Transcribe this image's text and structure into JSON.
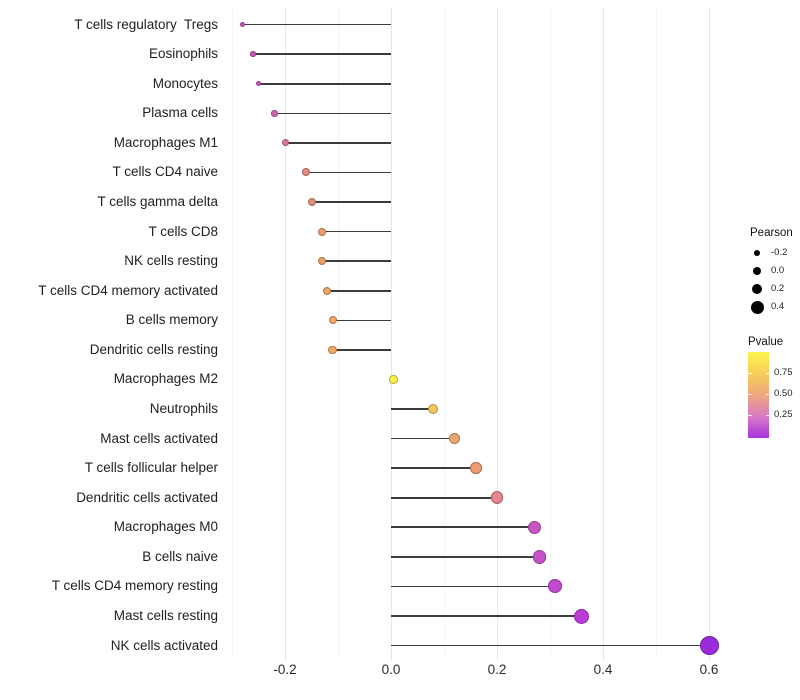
{
  "chart_data": {
    "type": "lollipop",
    "title": "",
    "xlabel": "",
    "ylabel": "",
    "x_tick_labels": [
      "-0.2",
      "0.0",
      "0.2",
      "0.4",
      "0.6"
    ],
    "x_tick_values": [
      -0.2,
      0.0,
      0.2,
      0.4,
      0.6
    ],
    "x_minor_tick_values": [
      -0.3,
      -0.1,
      0.1,
      0.3,
      0.5
    ],
    "x_range": [
      -0.32,
      0.64
    ],
    "grid": "vertical-only",
    "rows": [
      {
        "label": "T cells regulatory  Tregs",
        "pearson": -0.28,
        "pvalue": 0.3,
        "color": "#C157BB",
        "size": 5
      },
      {
        "label": "Eosinophils",
        "pearson": -0.26,
        "pvalue": 0.3,
        "color": "#C45AB8",
        "size": 5.5
      },
      {
        "label": "Monocytes",
        "pearson": -0.25,
        "pvalue": 0.31,
        "color": "#C55CB6",
        "size": 5.5
      },
      {
        "label": "Plasma cells",
        "pearson": -0.22,
        "pvalue": 0.33,
        "color": "#CC64AE",
        "size": 6.5
      },
      {
        "label": "Macrophages M1",
        "pearson": -0.2,
        "pvalue": 0.38,
        "color": "#DA7697",
        "size": 7
      },
      {
        "label": "T cells CD4 naive",
        "pearson": -0.16,
        "pvalue": 0.46,
        "color": "#E48A80",
        "size": 8
      },
      {
        "label": "T cells gamma delta",
        "pearson": -0.15,
        "pvalue": 0.47,
        "color": "#E38D7C",
        "size": 8
      },
      {
        "label": "T cells CD8",
        "pearson": -0.13,
        "pvalue": 0.55,
        "color": "#EC9F6B",
        "size": 8
      },
      {
        "label": "NK cells resting",
        "pearson": -0.13,
        "pvalue": 0.55,
        "color": "#EDA167",
        "size": 8
      },
      {
        "label": "T cells CD4 memory activated",
        "pearson": -0.12,
        "pvalue": 0.56,
        "color": "#EEA365",
        "size": 8
      },
      {
        "label": "B cells memory",
        "pearson": -0.11,
        "pvalue": 0.57,
        "color": "#EFA663",
        "size": 8
      },
      {
        "label": "Dendritic cells resting",
        "pearson": -0.11,
        "pvalue": 0.57,
        "color": "#F0A765",
        "size": 8.5
      },
      {
        "label": "Macrophages M2",
        "pearson": 0.005,
        "pvalue": 0.93,
        "color": "#FAF04C",
        "size": 8.5
      },
      {
        "label": "Neutrophils",
        "pearson": 0.08,
        "pvalue": 0.72,
        "color": "#F3C75C",
        "size": 10
      },
      {
        "label": "Mast cells activated",
        "pearson": 0.12,
        "pvalue": 0.55,
        "color": "#EFA468",
        "size": 11
      },
      {
        "label": "T cells follicular helper",
        "pearson": 0.16,
        "pvalue": 0.47,
        "color": "#EC9B72",
        "size": 11.5
      },
      {
        "label": "Dendritic cells activated",
        "pearson": 0.2,
        "pvalue": 0.44,
        "color": "#E5878B",
        "size": 12.5
      },
      {
        "label": "Macrophages M0",
        "pearson": 0.27,
        "pvalue": 0.26,
        "color": "#C855C3",
        "size": 13
      },
      {
        "label": "B cells naive",
        "pearson": 0.28,
        "pvalue": 0.25,
        "color": "#C751C8",
        "size": 13.5
      },
      {
        "label": "T cells CD4 memory resting",
        "pearson": 0.31,
        "pvalue": 0.22,
        "color": "#C348D0",
        "size": 14
      },
      {
        "label": "Mast cells resting",
        "pearson": 0.36,
        "pvalue": 0.18,
        "color": "#BB3DD8",
        "size": 15
      },
      {
        "label": "NK cells activated",
        "pearson": 0.6,
        "pvalue": 0.03,
        "color": "#9B2BDB",
        "size": 19
      }
    ],
    "legend": {
      "size": {
        "title": "Pearson",
        "dot_color": "#000000",
        "entries": [
          {
            "label": "-0.2",
            "d": 6.5
          },
          {
            "label": "0.0",
            "d": 8.5
          },
          {
            "label": "0.2",
            "d": 10.5
          },
          {
            "label": "0.4",
            "d": 13
          }
        ]
      },
      "color": {
        "title": "Pvalue",
        "tick_labels": [
          "0.75",
          "0.50",
          "0.25"
        ],
        "gradient_top_to_bottom": [
          "#FBF54D",
          "#F7CE58",
          "#EEA77E",
          "#D97BC5",
          "#A832E1"
        ]
      }
    },
    "style": {
      "stem_color": "#3b3b3b",
      "grid_major_color": "#e8e8e8",
      "grid_minor_color": "#f3f3f3",
      "background": "#ffffff"
    }
  }
}
